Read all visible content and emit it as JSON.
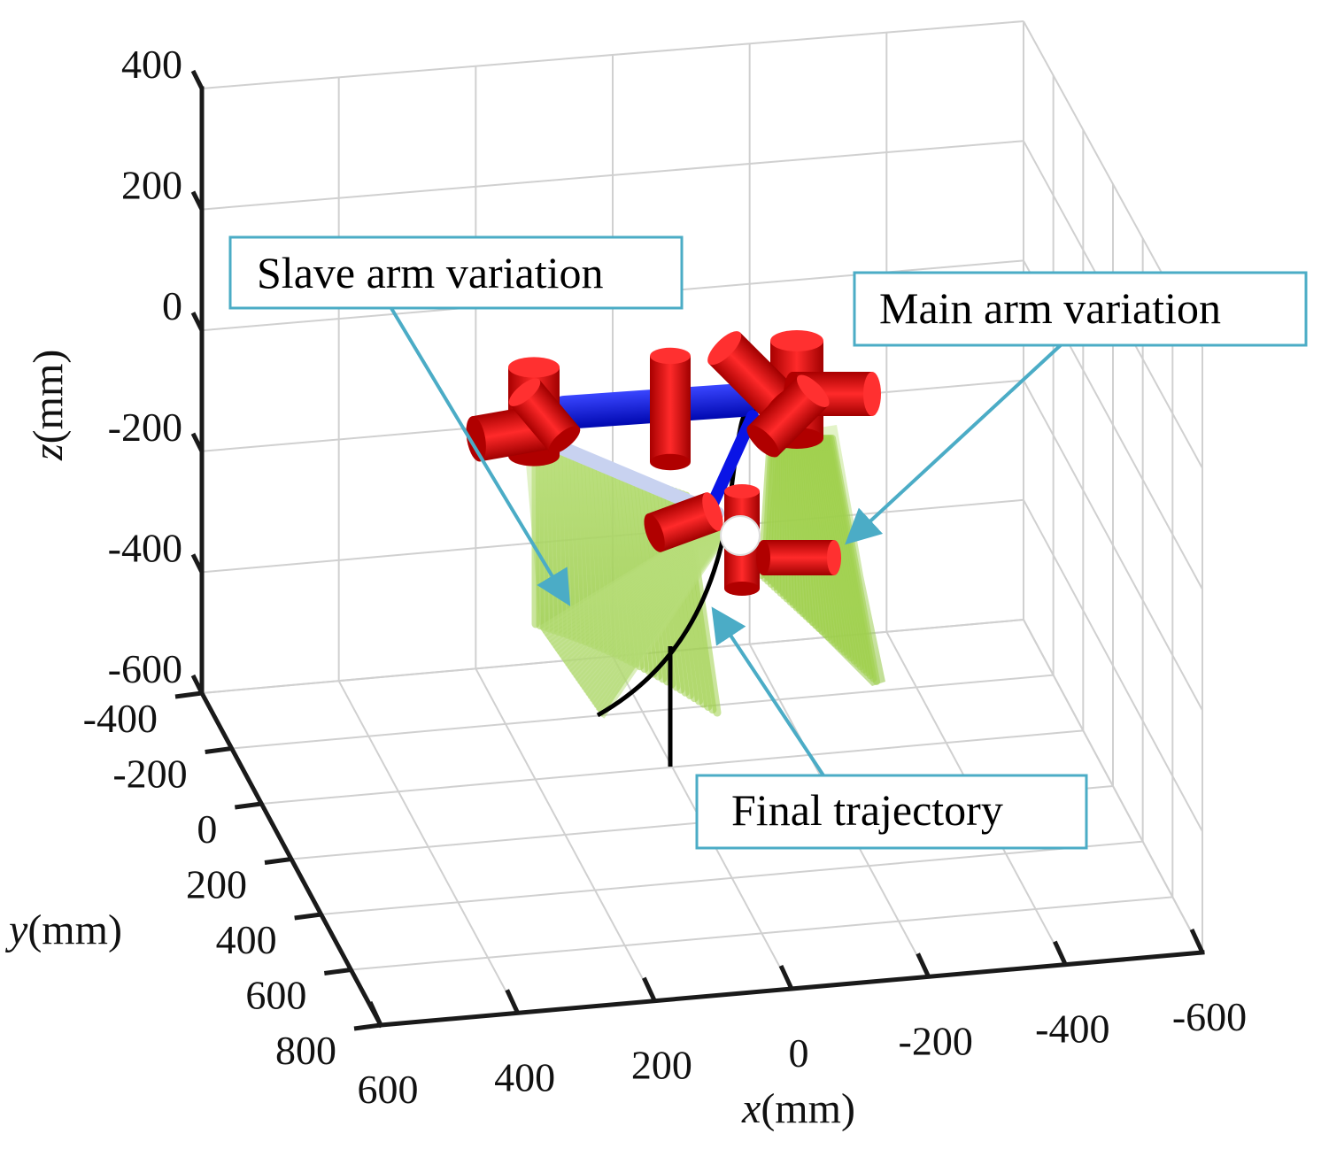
{
  "chart_data": {
    "type": "3d-line",
    "title": "",
    "xlabel": {
      "var": "x",
      "unit": "(mm)"
    },
    "ylabel": {
      "var": "y",
      "unit": "(mm)"
    },
    "zlabel": {
      "var": "z",
      "unit": "(mm)"
    },
    "x_ticks": [
      "600",
      "400",
      "200",
      "0",
      "-200",
      "-400",
      "-600"
    ],
    "y_ticks": [
      "-400",
      "-200",
      "0",
      "200",
      "400",
      "600",
      "800"
    ],
    "z_ticks": [
      "400",
      "200",
      "0",
      "-200",
      "-400",
      "-600"
    ],
    "xlim": [
      -600,
      600
    ],
    "ylim": [
      -400,
      800
    ],
    "zlim": [
      -600,
      400
    ],
    "grid": true,
    "annotations": [
      {
        "id": "slave",
        "text": "Slave arm variation"
      },
      {
        "id": "main",
        "text": "Main arm variation"
      },
      {
        "id": "traj",
        "text": "Final trajectory"
      }
    ],
    "series": [
      {
        "name": "Final trajectory",
        "color": "#000000"
      },
      {
        "name": "Slave arm variation",
        "color": "#9ed04a"
      },
      {
        "name": "Main arm variation",
        "color": "#9ed04a"
      }
    ]
  },
  "colors": {
    "joint": "#dd0000",
    "link": "#0a14e6",
    "sweep": "#9ed04a",
    "annotation_border": "#4bacc6"
  }
}
